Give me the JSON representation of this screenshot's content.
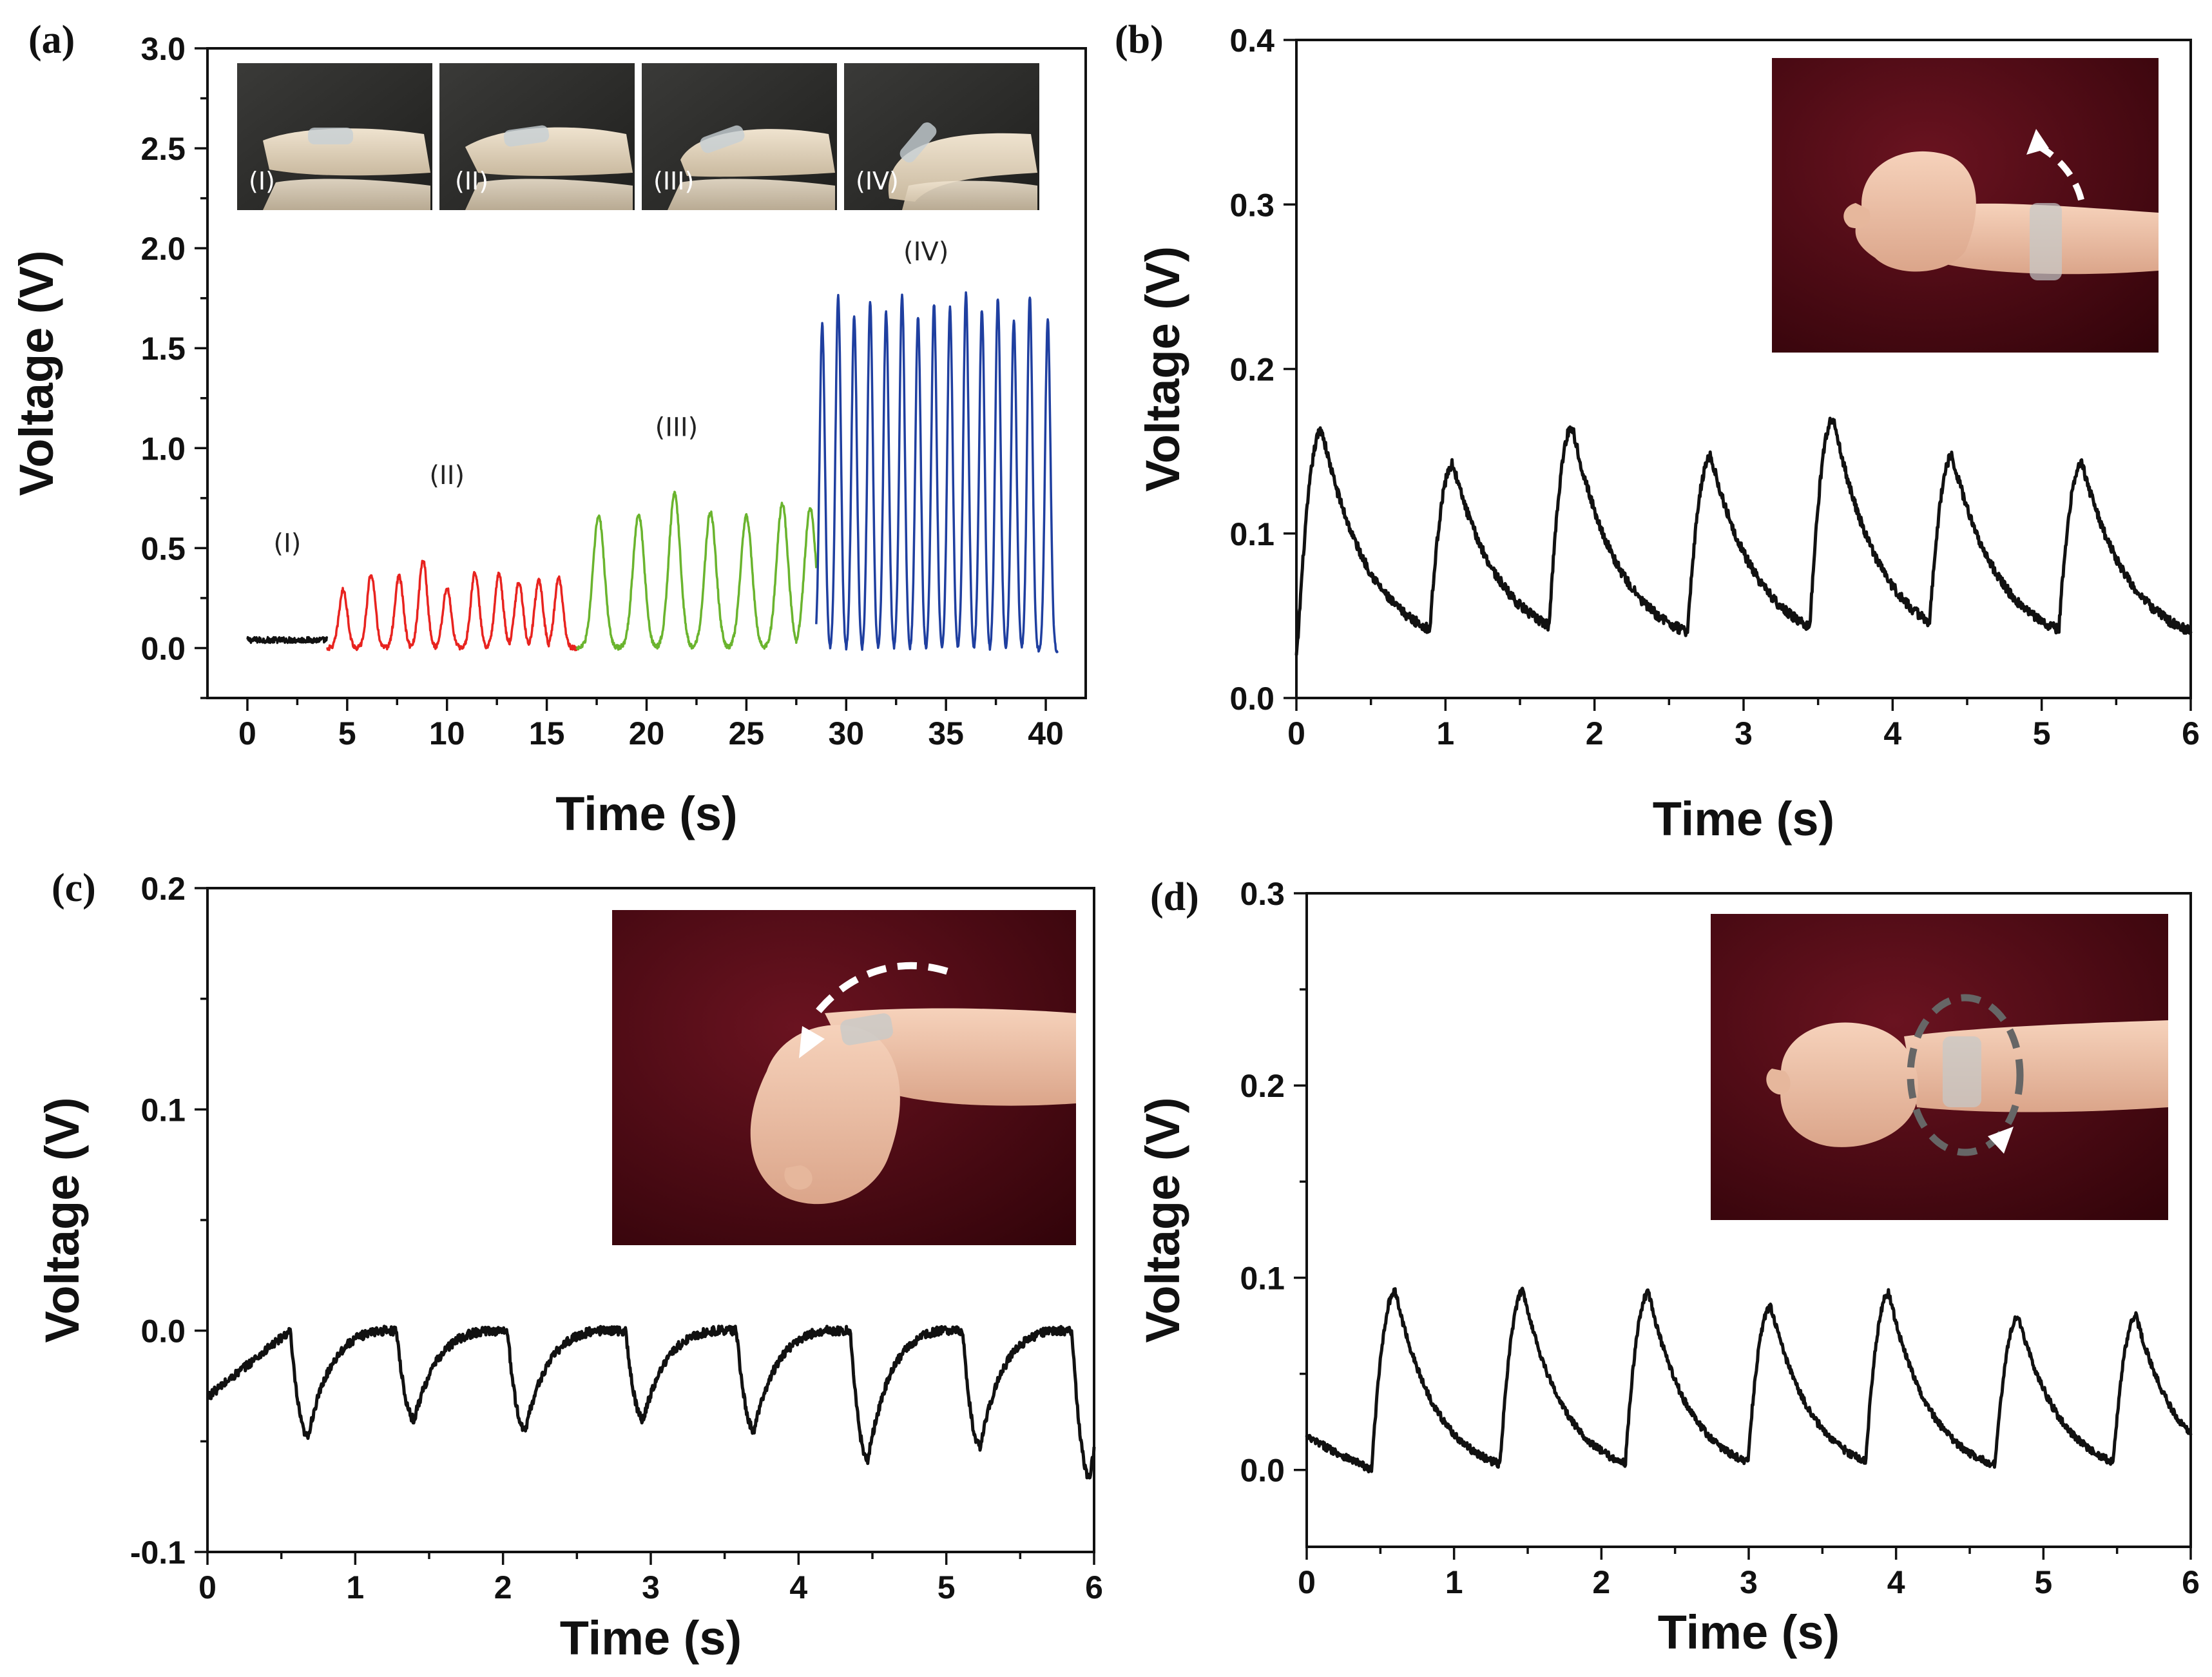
{
  "chart_data": [
    {
      "id": "a",
      "panel_label": "(a)",
      "type": "line",
      "xlabel": "Time (s)",
      "ylabel": "Voltage (V)",
      "xlim": [
        -2,
        42
      ],
      "ylim": [
        -0.25,
        3.0
      ],
      "xticks": [
        0,
        5,
        10,
        15,
        20,
        25,
        30,
        35,
        40
      ],
      "yticks": [
        0.0,
        0.5,
        1.0,
        1.5,
        2.0,
        2.5,
        3.0
      ],
      "ytick_decimals": 1,
      "x_minor": true,
      "y_minor": true,
      "series": [
        {
          "name": "(I)",
          "color": "#111111",
          "t_start": 0.0,
          "t_end": 4.0,
          "baseline": 0.04,
          "peaks": [],
          "noise": 0.015
        },
        {
          "name": "(II)",
          "color": "#e8231f",
          "t_start": 4.0,
          "t_end": 16.5,
          "baseline": 0.0,
          "noise": 0.012,
          "peaks": [
            {
              "t": 4.8,
              "v": 0.29
            },
            {
              "t": 6.2,
              "v": 0.37
            },
            {
              "t": 7.6,
              "v": 0.36
            },
            {
              "t": 8.8,
              "v": 0.44
            },
            {
              "t": 10.0,
              "v": 0.3
            },
            {
              "t": 11.4,
              "v": 0.38
            },
            {
              "t": 12.6,
              "v": 0.37
            },
            {
              "t": 13.6,
              "v": 0.33
            },
            {
              "t": 14.6,
              "v": 0.34
            },
            {
              "t": 15.6,
              "v": 0.35
            }
          ]
        },
        {
          "name": "(III)",
          "color": "#6ab42e",
          "t_start": 16.5,
          "t_end": 28.5,
          "baseline": 0.0,
          "noise": 0.012,
          "peaks": [
            {
              "t": 17.6,
              "v": 0.66
            },
            {
              "t": 19.6,
              "v": 0.67
            },
            {
              "t": 21.4,
              "v": 0.77
            },
            {
              "t": 23.2,
              "v": 0.68
            },
            {
              "t": 25.0,
              "v": 0.66
            },
            {
              "t": 26.8,
              "v": 0.72
            },
            {
              "t": 28.2,
              "v": 0.7
            }
          ]
        },
        {
          "name": "(IV)",
          "color": "#1f3fa0",
          "t_start": 28.5,
          "t_end": 40.6,
          "baseline": -0.02,
          "noise": 0.01,
          "peaks": [
            {
              "t": 28.8,
              "v": 1.62
            },
            {
              "t": 29.6,
              "v": 1.76
            },
            {
              "t": 30.4,
              "v": 1.66
            },
            {
              "t": 31.2,
              "v": 1.73
            },
            {
              "t": 32.0,
              "v": 1.68
            },
            {
              "t": 32.8,
              "v": 1.77
            },
            {
              "t": 33.6,
              "v": 1.66
            },
            {
              "t": 34.4,
              "v": 1.72
            },
            {
              "t": 35.2,
              "v": 1.7
            },
            {
              "t": 36.0,
              "v": 1.77
            },
            {
              "t": 36.8,
              "v": 1.69
            },
            {
              "t": 37.6,
              "v": 1.75
            },
            {
              "t": 38.4,
              "v": 1.64
            },
            {
              "t": 39.2,
              "v": 1.76
            },
            {
              "t": 40.1,
              "v": 1.64
            }
          ]
        }
      ],
      "annotations": [
        {
          "text": "(I)",
          "x": 2.0,
          "y": 0.48
        },
        {
          "text": "(II)",
          "x": 10.0,
          "y": 0.82
        },
        {
          "text": "(III)",
          "x": 21.5,
          "y": 1.06
        },
        {
          "text": "(IV)",
          "x": 34.0,
          "y": 1.94
        }
      ],
      "inset_photos": [
        {
          "name": "finger-bend-photo-i",
          "label": "(I)"
        },
        {
          "name": "finger-bend-photo-ii",
          "label": "(II)"
        },
        {
          "name": "finger-bend-photo-iii",
          "label": "(III)"
        },
        {
          "name": "finger-bend-photo-iv",
          "label": "(IV)"
        }
      ]
    },
    {
      "id": "b",
      "panel_label": "(b)",
      "type": "line",
      "xlabel": "Time (s)",
      "ylabel": "Voltage (V)",
      "xlim": [
        0,
        6
      ],
      "ylim": [
        0.0,
        0.4
      ],
      "xticks": [
        0,
        1,
        2,
        3,
        4,
        5,
        6
      ],
      "yticks": [
        0.0,
        0.1,
        0.2,
        0.3,
        0.4
      ],
      "ytick_decimals": 1,
      "x_minor": true,
      "y_minor": false,
      "series": [
        {
          "name": "wrist-extension",
          "color": "#111111",
          "baseline": 0.035,
          "start_value": 0.025,
          "noise": 0.003,
          "rise": 0.16,
          "fall": 0.45,
          "peaks": [
            {
              "t": 0.17,
              "v": 0.163
            },
            {
              "t": 1.05,
              "v": 0.142
            },
            {
              "t": 1.85,
              "v": 0.165
            },
            {
              "t": 2.78,
              "v": 0.147
            },
            {
              "t": 3.6,
              "v": 0.17
            },
            {
              "t": 4.4,
              "v": 0.147
            },
            {
              "t": 5.27,
              "v": 0.143
            }
          ]
        }
      ],
      "inset_photos": [
        {
          "name": "wrist-extension-photo",
          "arrow": "up"
        }
      ]
    },
    {
      "id": "c",
      "panel_label": "(c)",
      "type": "line",
      "xlabel": "Time (s)",
      "ylabel": "Voltage (V)",
      "xlim": [
        0,
        6
      ],
      "ylim": [
        -0.1,
        0.2
      ],
      "xticks": [
        0,
        1,
        2,
        3,
        4,
        5,
        6
      ],
      "yticks": [
        -0.1,
        0.0,
        0.1,
        0.2
      ],
      "ytick_decimals": 1,
      "x_minor": true,
      "y_minor": true,
      "series": [
        {
          "name": "wrist-flexion",
          "color": "#111111",
          "baseline": 0.0,
          "start_value": -0.03,
          "noise": 0.002,
          "rise": 0.12,
          "fall": 0.22,
          "peaks": [
            {
              "t": 0.68,
              "v": -0.048
            },
            {
              "t": 1.4,
              "v": -0.04
            },
            {
              "t": 2.15,
              "v": -0.045
            },
            {
              "t": 2.95,
              "v": -0.04
            },
            {
              "t": 3.7,
              "v": -0.045
            },
            {
              "t": 4.47,
              "v": -0.058
            },
            {
              "t": 5.23,
              "v": -0.052
            },
            {
              "t": 5.97,
              "v": -0.066
            }
          ]
        }
      ],
      "inset_photos": [
        {
          "name": "wrist-flexion-photo",
          "arrow": "down-arc"
        }
      ]
    },
    {
      "id": "d",
      "panel_label": "(d)",
      "type": "line",
      "xlabel": "Time (s)",
      "ylabel": "Voltage (V)",
      "xlim": [
        0,
        6
      ],
      "ylim": [
        -0.04,
        0.3
      ],
      "xticks": [
        0,
        1,
        2,
        3,
        4,
        5,
        6
      ],
      "yticks": [
        0.0,
        0.1,
        0.2,
        0.3
      ],
      "ytick_decimals": 1,
      "x_minor": true,
      "y_minor": true,
      "series": [
        {
          "name": "wrist-rotation",
          "color": "#111111",
          "baseline": 0.0,
          "start_value": 0.017,
          "noise": 0.002,
          "rise": 0.16,
          "fall": 0.4,
          "peaks": [
            {
              "t": 0.6,
              "v": 0.093
            },
            {
              "t": 1.47,
              "v": 0.093
            },
            {
              "t": 2.32,
              "v": 0.092
            },
            {
              "t": 3.15,
              "v": 0.085
            },
            {
              "t": 3.95,
              "v": 0.092
            },
            {
              "t": 4.83,
              "v": 0.08
            },
            {
              "t": 5.63,
              "v": 0.08
            }
          ]
        }
      ],
      "inset_photos": [
        {
          "name": "wrist-rotation-photo",
          "arrow": "circular"
        }
      ]
    }
  ]
}
